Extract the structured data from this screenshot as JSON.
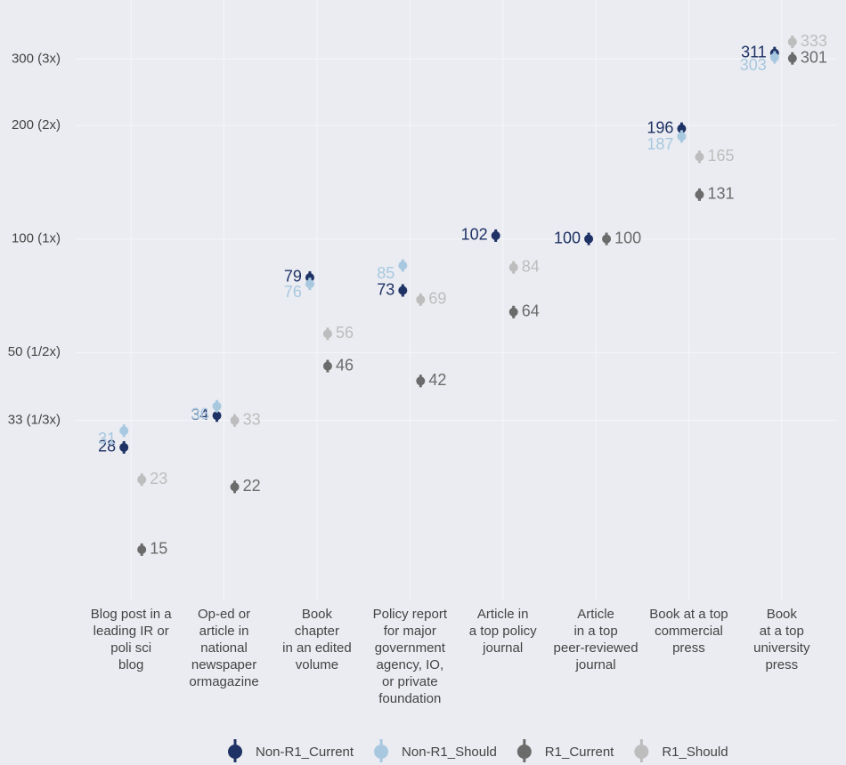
{
  "chart_data": {
    "type": "dotplot",
    "categories": [
      "Blog post in a\nleading IR or\npoli sci\nblog",
      "Op-ed or\narticle in\nnational\nnewspaper\normagazine",
      "Book\nchapter\nin an edited\nvolume",
      "Policy report\nfor major\ngovernment\nagency, IO,\nor private\nfoundation",
      "Article in\na top policy\njournal",
      "Article\nin a top\npeer-reviewed\njournal",
      "Book at a top\ncommercial\npress",
      "Book\nat a top\nuniversity\npress"
    ],
    "series": [
      {
        "name": "Non-R1_Current",
        "color": "#1f3265",
        "values": [
          28,
          34,
          79,
          73,
          102,
          100,
          196,
          311
        ]
      },
      {
        "name": "Non-R1_Should",
        "color": "#a8c8e0",
        "values": [
          31,
          36,
          76,
          85,
          null,
          null,
          187,
          303
        ]
      },
      {
        "name": "R1_Current",
        "color": "#6b6b6b",
        "values": [
          15,
          22,
          46,
          42,
          64,
          100,
          131,
          301
        ]
      },
      {
        "name": "R1_Should",
        "color": "#bdbdbd",
        "values": [
          23,
          33,
          56,
          69,
          84,
          null,
          165,
          333
        ]
      }
    ],
    "ylim": [
      11,
      430
    ],
    "log_scale": true,
    "grid": true,
    "legend": "bottom",
    "yticks": [
      {
        "value": 33,
        "label": "33 (1/3x)"
      },
      {
        "value": 50,
        "label": "50 (1/2x)"
      },
      {
        "value": 100,
        "label": "100 (1x)"
      },
      {
        "value": 200,
        "label": "200 (2x)"
      },
      {
        "value": 300,
        "label": "300 (3x)"
      }
    ]
  }
}
